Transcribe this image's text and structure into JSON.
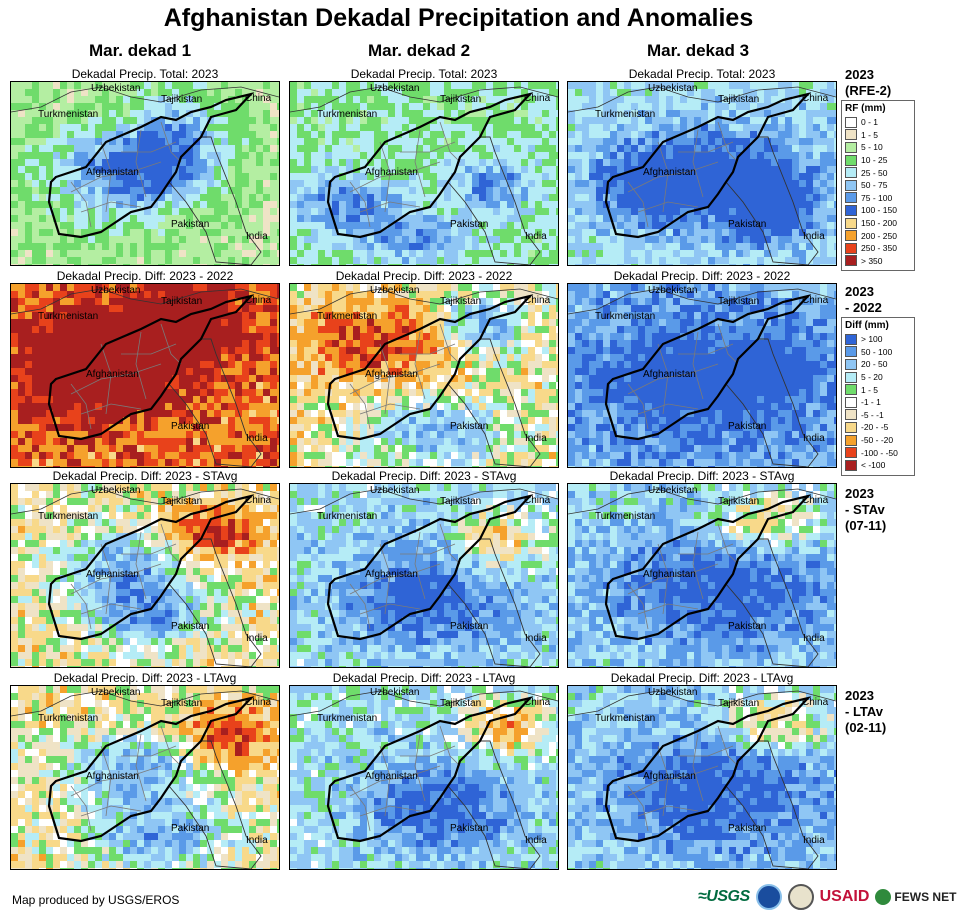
{
  "title": "Afghanistan Dekadal Precipitation and Anomalies",
  "columns": [
    "Mar. dekad 1",
    "Mar. dekad 2",
    "Mar. dekad 3"
  ],
  "rows": [
    {
      "panel_title": "Dekadal Precip. Total: 2023",
      "side_label": [
        "2023",
        "(RFE-2)"
      ],
      "scheme": "total",
      "legend": {
        "title": "RF (mm)",
        "items": [
          {
            "label": "0 - 1",
            "color": "#ffffff"
          },
          {
            "label": "1 - 5",
            "color": "#efe3c6"
          },
          {
            "label": "5 - 10",
            "color": "#b4eea2"
          },
          {
            "label": "10 - 25",
            "color": "#6fdc6b"
          },
          {
            "label": "25 - 50",
            "color": "#b5ecf6"
          },
          {
            "label": "50 - 75",
            "color": "#8fc6f4"
          },
          {
            "label": "75 - 100",
            "color": "#5a9ae8"
          },
          {
            "label": "100 - 150",
            "color": "#2f64d6"
          },
          {
            "label": "150 - 200",
            "color": "#f8d98a"
          },
          {
            "label": "200 - 250",
            "color": "#f5a12c"
          },
          {
            "label": "250 - 350",
            "color": "#e8421b"
          },
          {
            "label": "> 350",
            "color": "#a81f1f"
          }
        ]
      },
      "maps": [
        [
          [
            0.45,
            0.35,
            0.45,
            0.2
          ],
          [
            0.35,
            0.6,
            0.3,
            0.3
          ],
          [
            0.55,
            0.5,
            0.25,
            0.2
          ],
          [
            0.6,
            0.2,
            0.2,
            0.3
          ]
        ],
        [
          [
            0.2,
            0.65,
            0.3,
            0.2
          ],
          [
            0.75,
            0.55,
            0.2,
            0.2
          ],
          [
            0.45,
            0.85,
            0.25,
            0.15
          ]
        ],
        [
          [
            0.55,
            0.5,
            0.45,
            0.35
          ],
          [
            0.3,
            0.55,
            0.25,
            0.25
          ],
          [
            0.75,
            0.7,
            0.2,
            0.25
          ]
        ]
      ]
    },
    {
      "panel_title": "Dekadal Precip. Diff: 2023 - 2022",
      "side_label": [
        "2023",
        "- 2022"
      ],
      "scheme": "diff",
      "legend": {
        "title": "Diff (mm)",
        "items": [
          {
            "label": "> 100",
            "color": "#2f64d6"
          },
          {
            "label": "50 - 100",
            "color": "#5a9ae8"
          },
          {
            "label": "20 - 50",
            "color": "#8fc6f4"
          },
          {
            "label": "5 - 20",
            "color": "#b5ecf6"
          },
          {
            "label": "1 - 5",
            "color": "#6fdc6b"
          },
          {
            "label": "-1 - 1",
            "color": "#ffffff"
          },
          {
            "label": "-5 - -1",
            "color": "#efe3c6"
          },
          {
            "label": "-20 - -5",
            "color": "#f8d98a"
          },
          {
            "label": "-50 - -20",
            "color": "#f5a12c"
          },
          {
            "label": "-100 - -50",
            "color": "#e8421b"
          },
          {
            "label": "< -100",
            "color": "#a81f1f"
          }
        ]
      },
      "maps": [
        [
          [
            0.35,
            0.45,
            0.35,
            0.3
          ],
          [
            0.6,
            0.2,
            0.3,
            0.25
          ],
          [
            0.25,
            0.35,
            0.2,
            0.2
          ]
        ],
        [
          [
            0.3,
            0.3,
            0.35,
            0.25
          ],
          [
            0.7,
            0.2,
            0.2,
            0.2
          ],
          [
            0.55,
            0.8,
            0.3,
            0.2
          ]
        ],
        [
          [
            0.5,
            0.5,
            0.55,
            0.45
          ],
          [
            0.75,
            0.45,
            0.15,
            0.12
          ]
        ]
      ]
    },
    {
      "panel_title": "Dekadal Precip. Diff: 2023 - STAvg",
      "side_label": [
        "2023",
        "- STAv",
        "(07-11)"
      ],
      "scheme": "diff",
      "legend": null,
      "maps": [
        [
          [
            0.4,
            0.45,
            0.3,
            0.25
          ],
          [
            0.75,
            0.25,
            0.2,
            0.2
          ],
          [
            0.5,
            0.7,
            0.25,
            0.2
          ]
        ],
        [
          [
            0.5,
            0.6,
            0.4,
            0.35
          ],
          [
            0.75,
            0.3,
            0.2,
            0.2
          ]
        ],
        [
          [
            0.55,
            0.55,
            0.5,
            0.4
          ],
          [
            0.7,
            0.2,
            0.25,
            0.2
          ]
        ]
      ]
    },
    {
      "panel_title": "Dekadal Precip. Diff: 2023 - LTAvg",
      "side_label": [
        "2023",
        "- LTAv",
        "(02-11)"
      ],
      "scheme": "diff",
      "legend": null,
      "maps": [
        [
          [
            0.45,
            0.45,
            0.3,
            0.25
          ],
          [
            0.8,
            0.25,
            0.2,
            0.2
          ],
          [
            0.55,
            0.8,
            0.3,
            0.2
          ]
        ],
        [
          [
            0.55,
            0.65,
            0.35,
            0.3
          ],
          [
            0.8,
            0.2,
            0.2,
            0.2
          ]
        ],
        [
          [
            0.55,
            0.55,
            0.5,
            0.4
          ],
          [
            0.75,
            0.2,
            0.25,
            0.2
          ]
        ]
      ]
    }
  ],
  "place_labels": {
    "uzbekistan": "Uzbekistan",
    "tajikistan": "Tajikistan",
    "china": "China",
    "turkmenistan": "Turkmenistan",
    "afghanistan": "Afghanistan",
    "pakistan": "Pakistan",
    "india": "India"
  },
  "footer": "Map produced by USGS/EROS",
  "logos": {
    "usgs": "≈USGS",
    "usaid": "USAID",
    "fews": "FEWS NET"
  }
}
